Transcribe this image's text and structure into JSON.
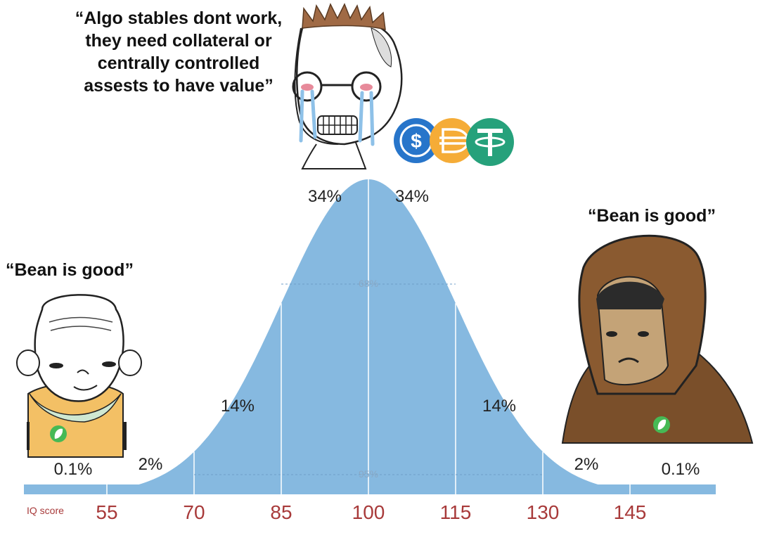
{
  "quotes": {
    "top": "“Algo stables dont work, they need collateral or centrally controlled assests to have value”",
    "left": "“Bean is good”",
    "right": "“Bean is good”"
  },
  "chart_data": {
    "type": "area",
    "x_label": "IQ score",
    "x_ticks": [
      "55",
      "70",
      "85",
      "100",
      "115",
      "130",
      "145"
    ],
    "band_labels": [
      {
        "x": 48,
        "text": "0.1%"
      },
      {
        "x": 62.5,
        "text": "2%"
      },
      {
        "x": 77.5,
        "text": "14%"
      },
      {
        "x": 92.5,
        "text": "34%"
      },
      {
        "x": 107.5,
        "text": "34%"
      },
      {
        "x": 122.5,
        "text": "14%"
      },
      {
        "x": 137.5,
        "text": "2%"
      },
      {
        "x": 152,
        "text": "0.1%"
      }
    ],
    "interval_labels": {
      "one_sigma": "68%",
      "two_sigma": "95%"
    },
    "fill_color": "#86b9e0"
  },
  "icons": [
    "usdc-icon",
    "dai-icon",
    "tether-icon",
    "bean-logo-icon"
  ]
}
